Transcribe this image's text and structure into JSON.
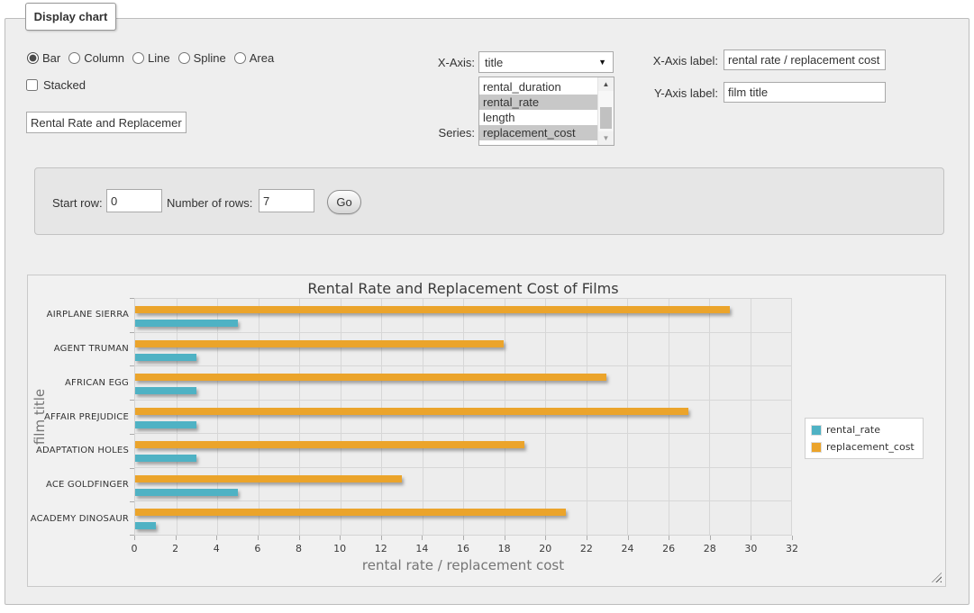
{
  "tab": {
    "title": "Display chart"
  },
  "chart_type": {
    "options": [
      {
        "label": "Bar",
        "selected": true
      },
      {
        "label": "Column",
        "selected": false
      },
      {
        "label": "Line",
        "selected": false
      },
      {
        "label": "Spline",
        "selected": false
      },
      {
        "label": "Area",
        "selected": false
      }
    ]
  },
  "stacked": {
    "label": "Stacked",
    "checked": false
  },
  "chart_title_input": {
    "value": "Rental Rate and Replacemer"
  },
  "x_axis": {
    "label": "X-Axis:",
    "selected": "title"
  },
  "series_list": {
    "label": "Series:",
    "options": [
      {
        "label": "rental_duration",
        "selected": false
      },
      {
        "label": "rental_rate",
        "selected": true
      },
      {
        "label": "length",
        "selected": false
      },
      {
        "label": "replacement_cost",
        "selected": true
      }
    ]
  },
  "x_axis_label_field": {
    "label": "X-Axis label:",
    "value": "rental rate / replacement cost"
  },
  "y_axis_label_field": {
    "label": "Y-Axis label:",
    "value": "film title"
  },
  "row_controls": {
    "start_row_label": "Start row:",
    "start_row_value": "0",
    "number_of_rows_label": "Number of rows:",
    "number_of_rows_value": "7",
    "go_label": "Go"
  },
  "chart_data": {
    "type": "bar",
    "title": "Rental Rate and Replacement Cost of Films",
    "categories": [
      "AIRPLANE SIERRA",
      "AGENT TRUMAN",
      "AFRICAN EGG",
      "AFFAIR PREJUDICE",
      "ADAPTATION HOLES",
      "ACE GOLDFINGER",
      "ACADEMY DINOSAUR"
    ],
    "series": [
      {
        "name": "rental_rate",
        "color": "#4FB2C4",
        "values": [
          4.99,
          2.99,
          2.99,
          2.99,
          2.99,
          4.99,
          0.99
        ]
      },
      {
        "name": "replacement_cost",
        "color": "#EBA42B",
        "values": [
          28.99,
          17.99,
          22.99,
          26.99,
          18.99,
          12.99,
          20.99
        ]
      }
    ],
    "xlabel": "rental rate / replacement cost",
    "ylabel": "film title",
    "xlim": [
      0,
      32
    ],
    "xtick_step": 2,
    "legend_position": "right",
    "grid": true
  }
}
